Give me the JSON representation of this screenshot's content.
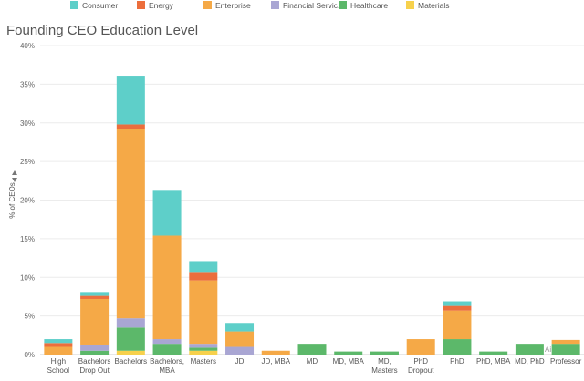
{
  "chart_data": {
    "type": "bar",
    "stacked": true,
    "title": "Founding CEO Education Level",
    "ylabel": "% of CEOs",
    "xlabel": "",
    "ylim": [
      0,
      40
    ],
    "yticks": [
      "0%",
      "5%",
      "10%",
      "15%",
      "20%",
      "25%",
      "30%",
      "35%",
      "40%"
    ],
    "grid": true,
    "legend_position": "top",
    "categories": [
      [
        "High",
        "School"
      ],
      [
        "Bachelors",
        "Drop Out"
      ],
      [
        "Bachelors"
      ],
      [
        "Bachelors,",
        "MBA"
      ],
      [
        "Masters"
      ],
      [
        "JD"
      ],
      [
        "JD, MBA"
      ],
      [
        "MD"
      ],
      [
        "MD, MBA"
      ],
      [
        "MD,",
        "Masters"
      ],
      [
        "PhD",
        "Dropout"
      ],
      [
        "PhD"
      ],
      [
        "PhD, MBA"
      ],
      [
        "MD, PhD"
      ],
      [
        "Professor"
      ]
    ],
    "series": [
      {
        "name": "Materials",
        "color": "#f7d14c",
        "values": [
          0,
          0,
          0.5,
          0,
          0.5,
          0,
          0,
          0,
          0,
          0,
          0,
          0,
          0,
          0,
          0
        ]
      },
      {
        "name": "Healthcare",
        "color": "#5cb86a",
        "values": [
          0,
          0.5,
          3.0,
          1.4,
          0.4,
          0,
          0,
          1.4,
          0.4,
          0.4,
          0,
          2.0,
          0.4,
          1.4,
          1.4
        ]
      },
      {
        "name": "Financial Servic..",
        "color": "#a9a6d3",
        "values": [
          0,
          0.8,
          1.2,
          0.6,
          0.5,
          1.0,
          0,
          0,
          0,
          0,
          0,
          0,
          0,
          0,
          0
        ]
      },
      {
        "name": "Enterprise",
        "color": "#f5a947",
        "values": [
          1.0,
          5.9,
          24.5,
          13.4,
          8.2,
          2.0,
          0.5,
          0,
          0,
          0,
          2.0,
          3.7,
          0,
          0,
          0.5
        ]
      },
      {
        "name": "Energy",
        "color": "#ec6e3c",
        "values": [
          0.5,
          0.4,
          0.6,
          0,
          1.1,
          0,
          0,
          0,
          0,
          0,
          0,
          0.6,
          0,
          0,
          0
        ]
      },
      {
        "name": "Consumer",
        "color": "#5ecfc9",
        "values": [
          0.5,
          0.5,
          6.3,
          5.8,
          1.4,
          1.1,
          0,
          0,
          0,
          0,
          0,
          0.6,
          0,
          0,
          0
        ]
      }
    ],
    "legend_order": [
      "Consumer",
      "Energy",
      "Enterprise",
      "Financial Servic..",
      "Healthcare",
      "Materials"
    ],
    "watermark": "Ai"
  }
}
